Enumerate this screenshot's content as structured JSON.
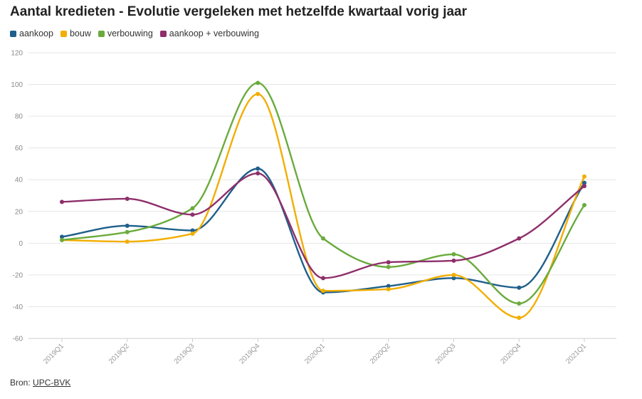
{
  "title": "Aantal kredieten - Evolutie vergeleken met hetzelfde kwartaal vorig jaar",
  "source": {
    "prefix": "Bron:",
    "link": "UPC-BVK"
  },
  "chart_data": {
    "type": "line",
    "title": "Aantal kredieten - Evolutie vergeleken met hetzelfde kwartaal vorig jaar",
    "xlabel": "",
    "ylabel": "",
    "categories": [
      "2019Q1",
      "2019Q2",
      "2019Q3",
      "2019Q4",
      "2020Q1",
      "2020Q2",
      "2020Q3",
      "2020Q4",
      "2021Q1"
    ],
    "ylim": [
      -60,
      120
    ],
    "yticks": [
      -60,
      -40,
      -20,
      0,
      20,
      40,
      60,
      80,
      100,
      120
    ],
    "grid": true,
    "legend": "top-left",
    "series": [
      {
        "name": "aankoop",
        "color": "#1f5f8b",
        "values": [
          4,
          11,
          8,
          47,
          -31,
          -27,
          -22,
          -28,
          38
        ]
      },
      {
        "name": "bouw",
        "color": "#f2ae00",
        "values": [
          2,
          1,
          6,
          94,
          -30,
          -29,
          -20,
          -47,
          42
        ]
      },
      {
        "name": "verbouwing",
        "color": "#6aab3c",
        "values": [
          2,
          7,
          22,
          101,
          3,
          -15,
          -7,
          -38,
          24
        ]
      },
      {
        "name": "aankoop + verbouwing",
        "color": "#8e2f6b",
        "values": [
          26,
          28,
          18,
          44,
          -22,
          -12,
          -11,
          3,
          36
        ]
      }
    ]
  }
}
